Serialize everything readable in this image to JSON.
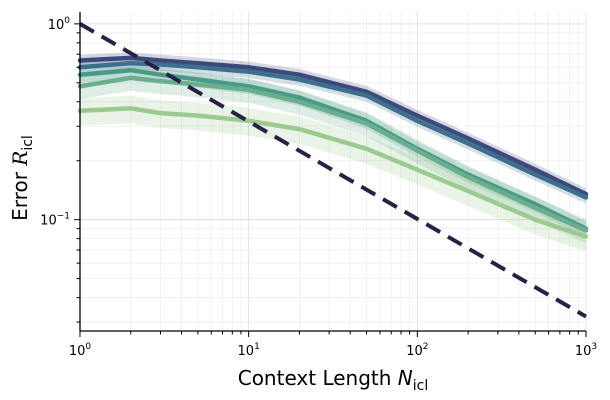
{
  "chart_data": {
    "type": "line",
    "xscale": "log",
    "yscale": "log",
    "xlim": [
      1,
      1000
    ],
    "ylim": [
      0.027,
      1.15
    ],
    "grid": true,
    "xlabel": {
      "main": "Context Length ",
      "var": "N",
      "sub": "icl"
    },
    "ylabel": {
      "main": "Error ",
      "var": "R",
      "sub": "icl"
    },
    "xticks": [
      {
        "value": 1,
        "base": "10",
        "exp": "0"
      },
      {
        "value": 10,
        "base": "10",
        "exp": "1"
      },
      {
        "value": 100,
        "base": "10",
        "exp": "2"
      },
      {
        "value": 1000,
        "base": "10",
        "exp": "3"
      }
    ],
    "yticks": [
      {
        "value": 1,
        "base": "10",
        "exp": "0"
      },
      {
        "value": 0.1,
        "base": "10",
        "exp": "−1"
      }
    ],
    "x": [
      1,
      2,
      3,
      5,
      10,
      20,
      50,
      100,
      200,
      500,
      1000
    ],
    "series": [
      {
        "color": "#3b4a7a",
        "band": 0.07,
        "values": [
          0.65,
          0.67,
          0.65,
          0.63,
          0.6,
          0.55,
          0.45,
          0.34,
          0.26,
          0.18,
          0.135
        ]
      },
      {
        "color": "#3e6f8e",
        "band": 0.07,
        "values": [
          0.6,
          0.63,
          0.62,
          0.6,
          0.57,
          0.52,
          0.43,
          0.32,
          0.245,
          0.17,
          0.13
        ]
      },
      {
        "color": "#4a9a8a",
        "band": 0.09,
        "values": [
          0.55,
          0.58,
          0.55,
          0.52,
          0.48,
          0.42,
          0.32,
          0.23,
          0.17,
          0.12,
          0.09
        ]
      },
      {
        "color": "#6aae8e",
        "band": 0.14,
        "values": [
          0.48,
          0.53,
          0.51,
          0.49,
          0.46,
          0.4,
          0.31,
          0.225,
          0.165,
          0.115,
          0.088
        ]
      },
      {
        "color": "#9cc98f",
        "band": 0.16,
        "values": [
          0.36,
          0.37,
          0.35,
          0.34,
          0.32,
          0.29,
          0.23,
          0.18,
          0.14,
          0.1,
          0.082
        ]
      }
    ],
    "reference": {
      "color": "#2a1f45",
      "dashed": true,
      "x": [
        1,
        1000
      ],
      "values": [
        1.0,
        0.032
      ]
    }
  }
}
